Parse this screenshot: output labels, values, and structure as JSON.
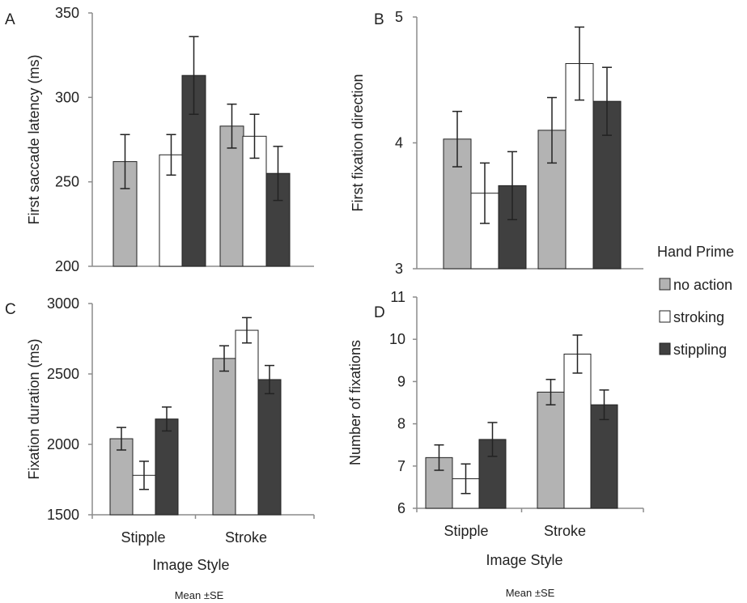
{
  "legend": {
    "title": "Hand Prime",
    "items": [
      {
        "name": "no action",
        "color": "#b3b3b3"
      },
      {
        "name": "stroking",
        "color": "#ffffff"
      },
      {
        "name": "stippling",
        "color": "#404040"
      }
    ]
  },
  "colors": {
    "axis": "#8c8c8c",
    "bar_stroke": "#222222",
    "error_bar": "#222222"
  },
  "chart_data": [
    {
      "panel": "A",
      "type": "bar",
      "categories": [
        "Stipple",
        "Stroke"
      ],
      "ylabel": "First saccade latency (ms)",
      "xlabel": "",
      "ylim": [
        200,
        350
      ],
      "yticks": [
        "200",
        "250",
        "300",
        "350"
      ],
      "show_category_labels": false,
      "footnote": "",
      "series": [
        {
          "name": "no action",
          "values": [
            262,
            283
          ],
          "errors": [
            16,
            13
          ]
        },
        {
          "name": "stroking",
          "values": [
            266,
            277
          ],
          "errors": [
            12,
            13
          ]
        },
        {
          "name": "stippling",
          "values": [
            313,
            255
          ],
          "errors": [
            23,
            16
          ]
        }
      ]
    },
    {
      "panel": "B",
      "type": "bar",
      "categories": [
        "Stipple",
        "Stroke"
      ],
      "ylabel": "First fixation direction",
      "xlabel": "",
      "ylim": [
        3,
        5
      ],
      "yticks": [
        "3",
        "4",
        "5"
      ],
      "show_category_labels": false,
      "footnote": "",
      "series": [
        {
          "name": "no action",
          "values": [
            4.03,
            4.1
          ],
          "errors": [
            0.22,
            0.26
          ]
        },
        {
          "name": "stroking",
          "values": [
            3.6,
            4.63
          ],
          "errors": [
            0.24,
            0.29
          ]
        },
        {
          "name": "stippling",
          "values": [
            3.66,
            4.33
          ],
          "errors": [
            0.27,
            0.27
          ]
        }
      ]
    },
    {
      "panel": "C",
      "type": "bar",
      "categories": [
        "Stipple",
        "Stroke"
      ],
      "ylabel": "Fixation duration (ms)",
      "xlabel": "Image Style",
      "ylim": [
        1500,
        3000
      ],
      "yticks": [
        "1500",
        "2000",
        "2500",
        "3000"
      ],
      "show_category_labels": true,
      "footnote": "Mean ±SE",
      "series": [
        {
          "name": "no action",
          "values": [
            2040,
            2610
          ],
          "errors": [
            80,
            90
          ]
        },
        {
          "name": "stroking",
          "values": [
            1780,
            2810
          ],
          "errors": [
            100,
            90
          ]
        },
        {
          "name": "stippling",
          "values": [
            2180,
            2460
          ],
          "errors": [
            85,
            100
          ]
        }
      ]
    },
    {
      "panel": "D",
      "type": "bar",
      "categories": [
        "Stipple",
        "Stroke"
      ],
      "ylabel": "Number of fixations",
      "xlabel": "Image Style",
      "ylim": [
        6,
        11
      ],
      "yticks": [
        "6",
        "7",
        "8",
        "9",
        "10",
        "11"
      ],
      "show_category_labels": true,
      "footnote": "Mean ±SE",
      "series": [
        {
          "name": "no action",
          "values": [
            7.2,
            8.75
          ],
          "errors": [
            0.3,
            0.3
          ]
        },
        {
          "name": "stroking",
          "values": [
            6.7,
            9.65
          ],
          "errors": [
            0.35,
            0.45
          ]
        },
        {
          "name": "stippling",
          "values": [
            7.63,
            8.45
          ],
          "errors": [
            0.4,
            0.35
          ]
        }
      ]
    }
  ]
}
